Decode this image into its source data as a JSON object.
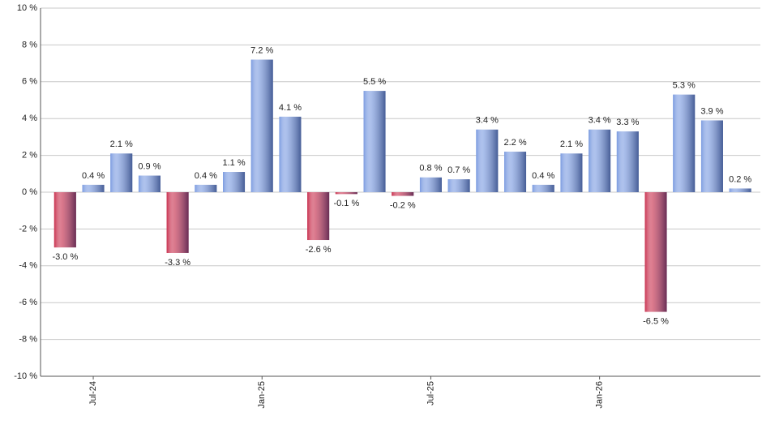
{
  "chart_data": {
    "type": "bar",
    "categories": [
      null,
      "Jul-24",
      null,
      null,
      null,
      null,
      null,
      "Jan-25",
      null,
      null,
      null,
      null,
      null,
      "Jul-25",
      null,
      null,
      null,
      null,
      null,
      "Jan-26",
      null,
      null,
      null,
      null,
      null
    ],
    "values": [
      -3.0,
      0.4,
      2.1,
      0.9,
      -3.3,
      0.4,
      1.1,
      7.2,
      4.1,
      -2.6,
      -0.1,
      5.5,
      -0.2,
      0.8,
      0.7,
      3.4,
      2.2,
      0.4,
      2.1,
      3.4,
      3.3,
      -6.5,
      5.3,
      3.9,
      0.2
    ],
    "value_labels": [
      "-3.0 %",
      "0.4 %",
      "2.1 %",
      "0.9 %",
      "-3.3 %",
      "0.4 %",
      "1.1 %",
      "7.2 %",
      "4.1 %",
      "-2.6 %",
      "-0.1 %",
      "5.5 %",
      "-0.2 %",
      "0.8 %",
      "0.7 %",
      "3.4 %",
      "2.2 %",
      "0.4 %",
      "2.1 %",
      "3.4 %",
      "3.3 %",
      "-6.5 %",
      "5.3 %",
      "3.9 %",
      "0.2 %"
    ],
    "positive_color": "#7b9be0",
    "negative_color": "#c8304e",
    "ylim": [
      -10,
      10
    ],
    "yticks": [
      {
        "value": -10,
        "label": "-10 %"
      },
      {
        "value": -8,
        "label": "-8 %"
      },
      {
        "value": -6,
        "label": "-6 %"
      },
      {
        "value": -4,
        "label": "-4 %"
      },
      {
        "value": -2,
        "label": "-2 %"
      },
      {
        "value": 0,
        "label": "0 %"
      },
      {
        "value": 2,
        "label": "2 %"
      },
      {
        "value": 4,
        "label": "4 %"
      },
      {
        "value": 6,
        "label": "6 %"
      },
      {
        "value": 8,
        "label": "8 %"
      },
      {
        "value": 10,
        "label": "10 %"
      }
    ],
    "grid": true
  }
}
